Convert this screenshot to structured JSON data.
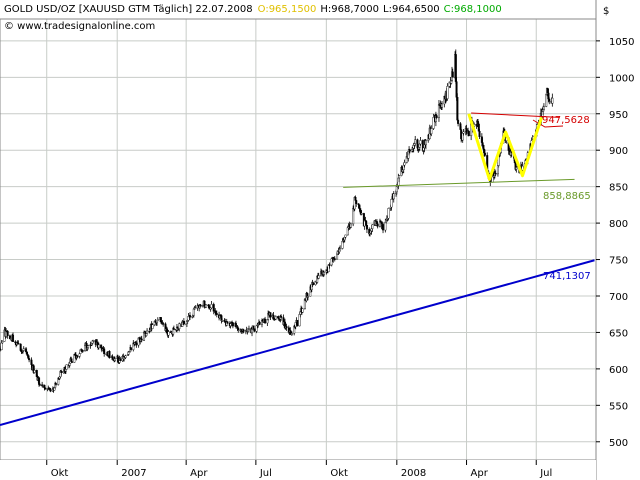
{
  "header": {
    "title": "GOLD USD/OZ [XAUUSD GTM Täglich] 22.07.2008",
    "open": "O:965,1500",
    "high": "H:968,7000",
    "low": "L:964,6500",
    "close": "C:968,1000",
    "source": "© www.tradesignalonline.com",
    "currency": "$"
  },
  "colors": {
    "candle_body": "#000000",
    "neckline_top": "#d40000",
    "neckline_bottom": "#6a9a2a",
    "pattern": "#ffff00",
    "trendline": "#0000cc",
    "grid": "#c8ccc8",
    "open_text": "#e0c000",
    "close_text": "#00aa00"
  },
  "chart_data": {
    "type": "candlestick",
    "ylim": [
      475,
      1080
    ],
    "y_ticks": [
      500,
      550,
      600,
      650,
      700,
      750,
      800,
      850,
      900,
      950,
      1000,
      1050
    ],
    "y_tick_labels": [
      "500",
      "550",
      "600",
      "650",
      "700",
      "750",
      "800",
      "850",
      "900",
      "950",
      "1000",
      "1050"
    ],
    "x_range": [
      "2006-08-01",
      "2008-09-17"
    ],
    "x_ticks": [
      {
        "date": "2006-10-01",
        "label": "Okt"
      },
      {
        "date": "2007-01-01",
        "label": "2007"
      },
      {
        "date": "2007-04-01",
        "label": "Apr"
      },
      {
        "date": "2007-07-01",
        "label": "Jul"
      },
      {
        "date": "2007-10-01",
        "label": "Okt"
      },
      {
        "date": "2008-01-01",
        "label": "2008"
      },
      {
        "date": "2008-04-01",
        "label": "Apr"
      },
      {
        "date": "2008-07-01",
        "label": "Jul"
      }
    ],
    "price_path": [
      [
        "2006-08-01",
        625
      ],
      [
        "2006-08-06",
        650
      ],
      [
        "2006-08-15",
        645
      ],
      [
        "2006-08-25",
        630
      ],
      [
        "2006-09-05",
        620
      ],
      [
        "2006-09-15",
        595
      ],
      [
        "2006-09-22",
        580
      ],
      [
        "2006-10-02",
        575
      ],
      [
        "2006-10-08",
        570
      ],
      [
        "2006-10-20",
        595
      ],
      [
        "2006-11-01",
        610
      ],
      [
        "2006-11-15",
        625
      ],
      [
        "2006-12-01",
        640
      ],
      [
        "2006-12-15",
        625
      ],
      [
        "2007-01-05",
        610
      ],
      [
        "2007-01-20",
        630
      ],
      [
        "2007-02-05",
        645
      ],
      [
        "2007-02-25",
        670
      ],
      [
        "2007-03-08",
        650
      ],
      [
        "2007-03-20",
        655
      ],
      [
        "2007-04-05",
        670
      ],
      [
        "2007-04-20",
        690
      ],
      [
        "2007-05-05",
        685
      ],
      [
        "2007-05-20",
        665
      ],
      [
        "2007-06-05",
        660
      ],
      [
        "2007-06-20",
        650
      ],
      [
        "2007-07-05",
        660
      ],
      [
        "2007-07-20",
        675
      ],
      [
        "2007-08-01",
        670
      ],
      [
        "2007-08-15",
        650
      ],
      [
        "2007-08-25",
        665
      ],
      [
        "2007-09-05",
        700
      ],
      [
        "2007-09-20",
        725
      ],
      [
        "2007-10-05",
        740
      ],
      [
        "2007-10-20",
        770
      ],
      [
        "2007-11-01",
        800
      ],
      [
        "2007-11-08",
        835
      ],
      [
        "2007-11-15",
        810
      ],
      [
        "2007-11-25",
        790
      ],
      [
        "2007-12-05",
        800
      ],
      [
        "2007-12-15",
        795
      ],
      [
        "2007-12-28",
        840
      ],
      [
        "2008-01-10",
        880
      ],
      [
        "2008-01-25",
        910
      ],
      [
        "2008-02-05",
        905
      ],
      [
        "2008-02-15",
        930
      ],
      [
        "2008-02-25",
        960
      ],
      [
        "2008-03-05",
        975
      ],
      [
        "2008-03-12",
        995
      ],
      [
        "2008-03-17",
        1025
      ],
      [
        "2008-03-20",
        945
      ],
      [
        "2008-03-25",
        920
      ],
      [
        "2008-04-05",
        925
      ],
      [
        "2008-04-12",
        945
      ],
      [
        "2008-04-20",
        915
      ],
      [
        "2008-05-01",
        860
      ],
      [
        "2008-05-10",
        875
      ],
      [
        "2008-05-20",
        925
      ],
      [
        "2008-06-01",
        885
      ],
      [
        "2008-06-10",
        870
      ],
      [
        "2008-06-20",
        895
      ],
      [
        "2008-07-01",
        930
      ],
      [
        "2008-07-10",
        960
      ],
      [
        "2008-07-15",
        980
      ],
      [
        "2008-07-22",
        965
      ]
    ],
    "lines": [
      {
        "name": "resistance",
        "start": [
          "2008-04-07",
          951
        ],
        "end": [
          "2008-07-31",
          945
        ],
        "label": "947,5628"
      },
      {
        "name": "support",
        "start": [
          "2007-10-23",
          849
        ],
        "end": [
          "2008-08-20",
          860
        ],
        "label": "858,8865"
      },
      {
        "name": "trend",
        "start": [
          "2006-08-01",
          523
        ],
        "end": [
          "2008-09-15",
          749
        ],
        "label": "741,1307"
      }
    ],
    "pattern": [
      [
        "2008-04-04",
        950
      ],
      [
        "2008-05-01",
        860
      ],
      [
        "2008-05-22",
        925
      ],
      [
        "2008-06-13",
        865
      ],
      [
        "2008-07-08",
        945
      ]
    ]
  }
}
